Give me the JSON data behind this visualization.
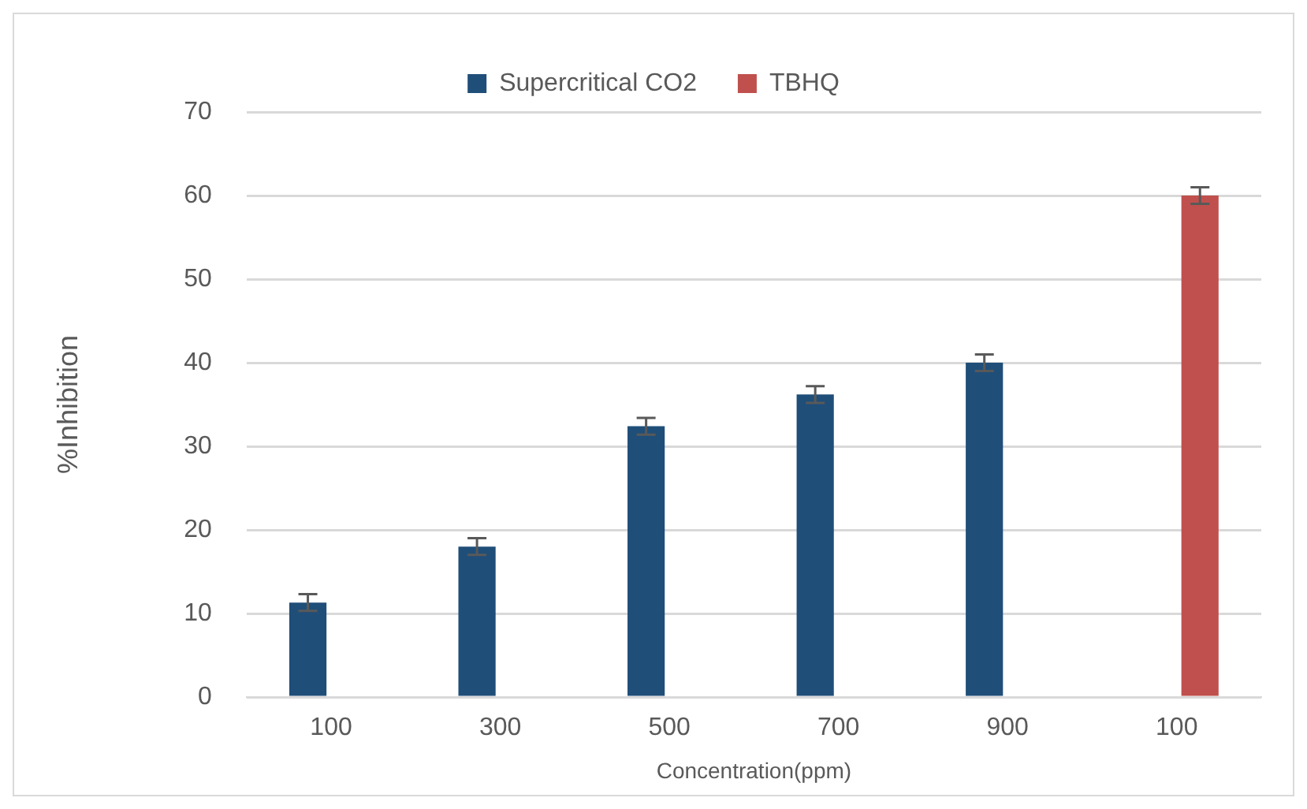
{
  "chart_data": {
    "type": "bar",
    "xlabel": "Concentration(ppm)",
    "ylabel": "%Inhibition",
    "categories": [
      "100",
      "300",
      "500",
      "700",
      "900",
      "100"
    ],
    "series": [
      {
        "name": "Supercritical CO2",
        "color": "#1f4e79",
        "values": [
          11.3,
          18,
          32.4,
          36.2,
          40,
          null
        ],
        "errors": [
          1,
          1,
          1,
          1,
          1,
          null
        ]
      },
      {
        "name": "TBHQ",
        "color": "#c0504d",
        "values": [
          null,
          null,
          null,
          null,
          null,
          60
        ],
        "errors": [
          null,
          null,
          null,
          null,
          null,
          1
        ]
      }
    ],
    "ylim": [
      0,
      70
    ],
    "yticks": [
      0,
      10,
      20,
      30,
      40,
      50,
      60,
      70
    ],
    "grid": "y",
    "legend": "top"
  }
}
